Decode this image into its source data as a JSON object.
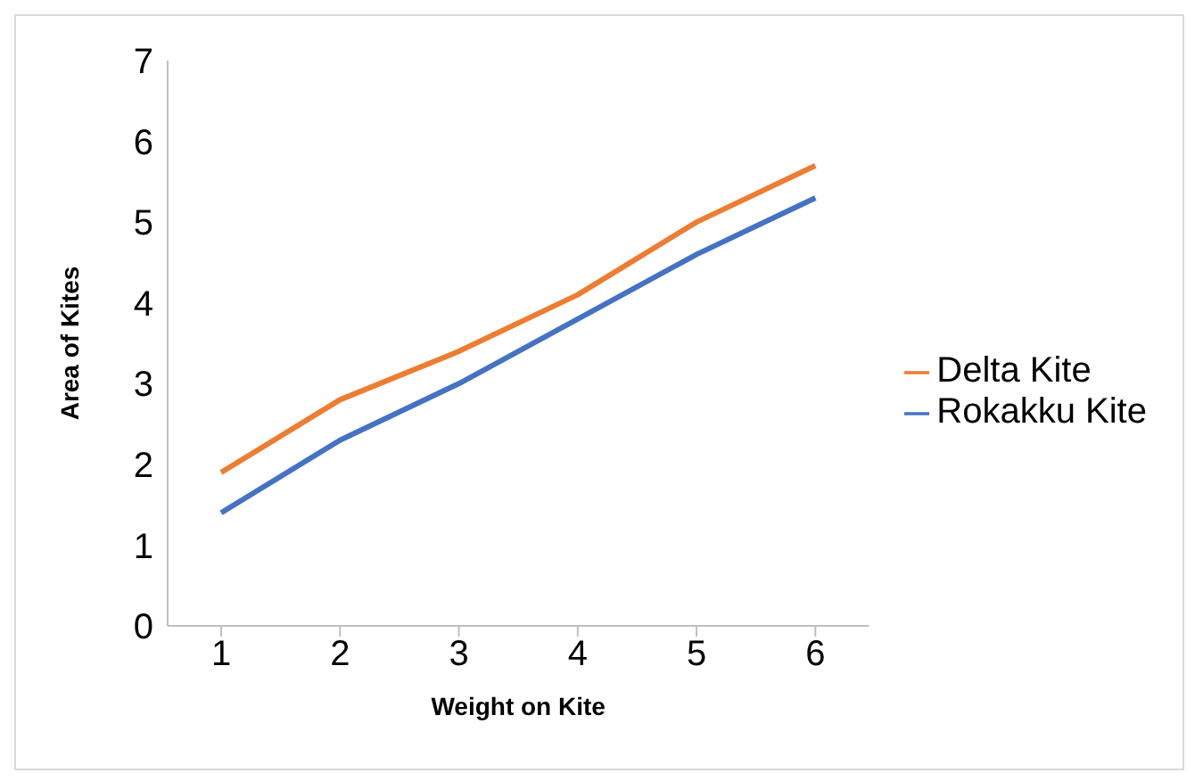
{
  "chart_data": {
    "type": "line",
    "xlabel": "Weight on Kite",
    "ylabel": "Area of Kites",
    "categories": [
      "1",
      "2",
      "3",
      "4",
      "5",
      "6"
    ],
    "series": [
      {
        "name": "Rokakku Kite",
        "color": "#4472c4",
        "values": [
          1.4,
          2.3,
          3.0,
          3.8,
          4.6,
          5.3
        ]
      },
      {
        "name": "Delta Kite",
        "color": "#ed7d31",
        "values": [
          1.9,
          2.8,
          3.4,
          4.1,
          5.0,
          5.7
        ]
      }
    ],
    "ylim": [
      0,
      7
    ],
    "yticks": [
      0,
      1,
      2,
      3,
      4,
      5,
      6,
      7
    ],
    "grid": false,
    "legend": "right",
    "marker": "none",
    "line_style": "solid"
  }
}
